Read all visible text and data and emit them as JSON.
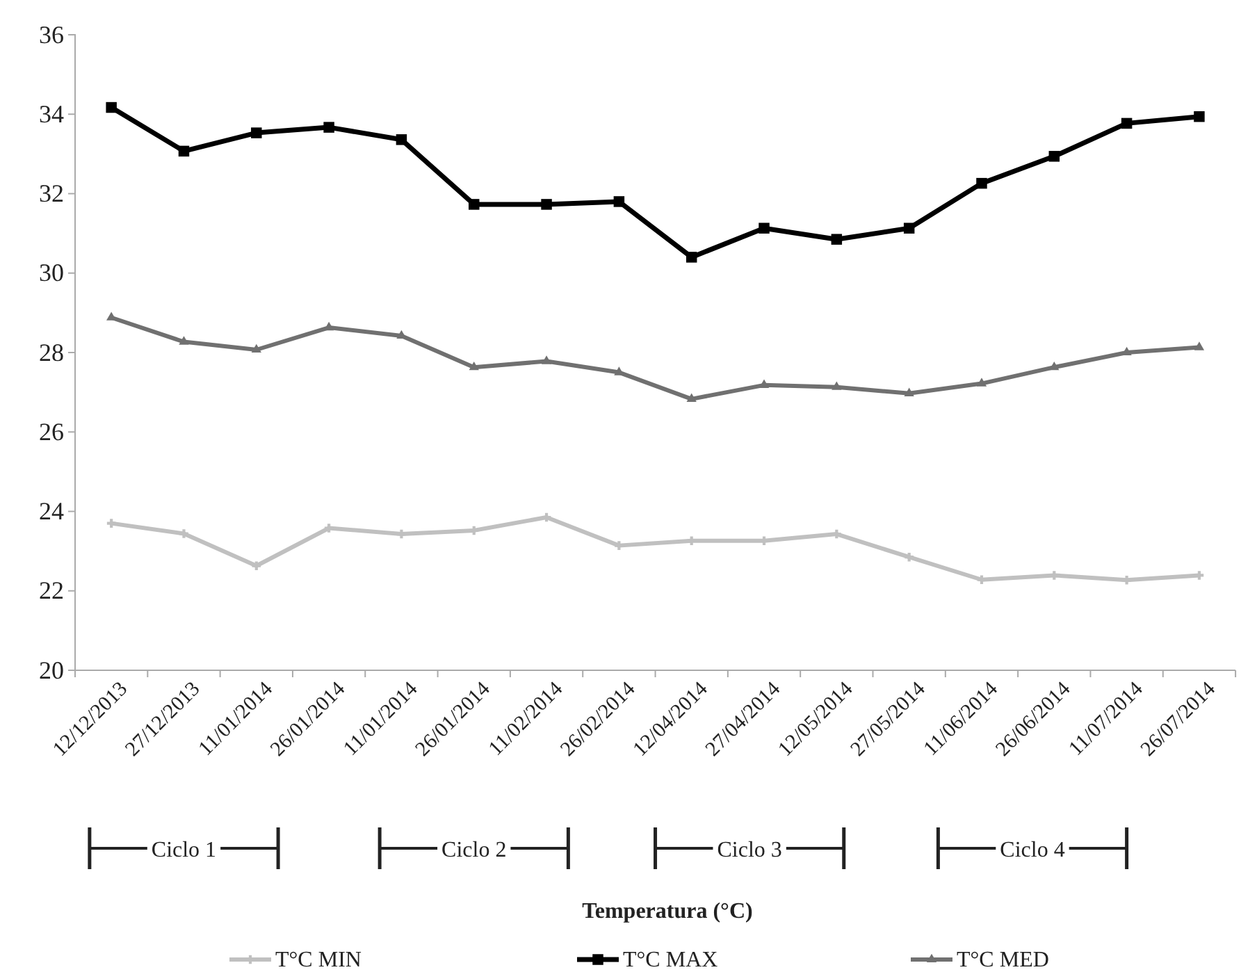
{
  "chart_data": {
    "type": "line",
    "categories": [
      "12/12/2013",
      "27/12/2013",
      "11/01/2014",
      "26/01/2014",
      "11/01/2014",
      "26/01/2014",
      "11/02/2014",
      "26/02/2014",
      "12/04/2014",
      "27/04/2014",
      "12/05/2014",
      "27/05/2014",
      "11/06/2014",
      "26/06/2014",
      "11/07/2014",
      "26/07/2014"
    ],
    "series": [
      {
        "name": "T°C MIN",
        "color": "#c0c0c0",
        "marker": "cross",
        "values": [
          23.7,
          23.44,
          22.63,
          23.58,
          23.43,
          23.52,
          23.85,
          23.14,
          23.26,
          23.26,
          23.43,
          22.85,
          22.28,
          22.39,
          22.27,
          22.39
        ]
      },
      {
        "name": "T°C MAX",
        "color": "#000000",
        "marker": "square",
        "values": [
          34.17,
          33.07,
          33.53,
          33.67,
          33.36,
          31.73,
          31.73,
          31.8,
          30.4,
          31.13,
          30.85,
          31.13,
          32.26,
          32.94,
          33.77,
          33.94
        ]
      },
      {
        "name": "T°C MED",
        "color": "#707070",
        "marker": "triangle",
        "values": [
          28.88,
          28.27,
          28.07,
          28.63,
          28.42,
          27.63,
          27.78,
          27.5,
          26.83,
          27.18,
          27.13,
          26.97,
          27.22,
          27.63,
          28.0,
          28.13
        ]
      }
    ],
    "annotations": [
      "Ciclo 1",
      "Ciclo 2",
      "Ciclo 3",
      "Ciclo 4",
      "Temperatura (°C)"
    ],
    "ylim": [
      20,
      36
    ],
    "yticks": [
      20,
      22,
      24,
      26,
      28,
      30,
      32,
      34,
      36
    ],
    "grid": false,
    "legend": "bottom",
    "line_style": "solid"
  }
}
